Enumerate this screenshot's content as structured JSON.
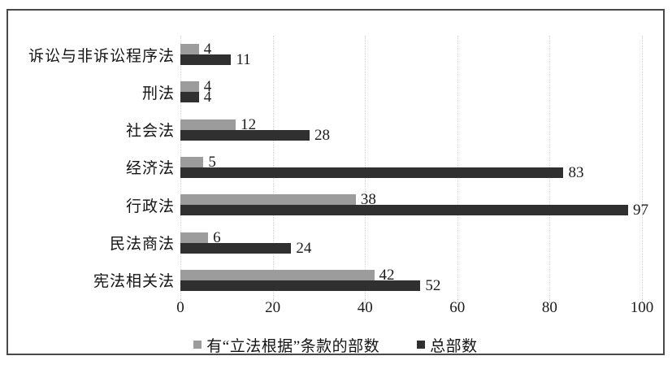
{
  "figure": {
    "background": "#ffffff",
    "border_color": "#4a4a4a"
  },
  "chart_data": {
    "type": "bar",
    "orientation": "horizontal",
    "title": "",
    "xlabel": "",
    "ylabel": "",
    "category_order": "top-to-bottom",
    "categories": [
      "诉讼与非诉讼程序法",
      "刑法",
      "社会法",
      "经济法",
      "行政法",
      "民法商法",
      "宪法相关法"
    ],
    "series": [
      {
        "name": "有“立法根据”条款的部数",
        "color": "#9c9c9c",
        "values": [
          4,
          4,
          12,
          5,
          38,
          6,
          42
        ]
      },
      {
        "name": "总部数",
        "color": "#303030",
        "values": [
          11,
          4,
          28,
          83,
          97,
          24,
          52
        ]
      }
    ],
    "xlim": [
      0,
      100
    ],
    "xticks": [
      0,
      20,
      40,
      60,
      80,
      100
    ],
    "grid": "vertical dotted gridlines at each x tick",
    "value_labels": "at end of each bar",
    "legend_position": "bottom-center",
    "text_color": "#1b1b1b",
    "gridline_color": "#d6d6d6"
  }
}
